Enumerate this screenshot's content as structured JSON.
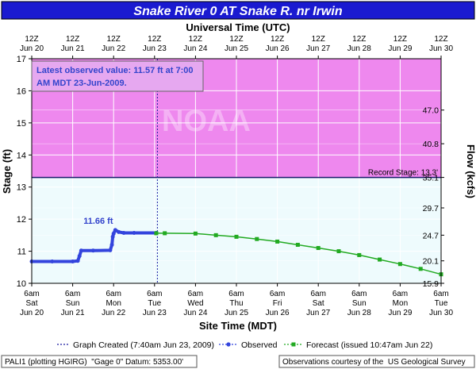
{
  "chart_data": {
    "type": "line",
    "title": "Snake River 0 AT Snake R. nr Irwin",
    "top_axis_title": "Universal Time (UTC)",
    "xlabel": "Site Time (MDT)",
    "ylabel_left": "Stage (ft)",
    "ylabel_right": "Flow (kcfs)",
    "x_range": [
      "2009-06-20 06:00",
      "2009-06-30 06:00"
    ],
    "ylim": [
      10,
      17
    ],
    "left_ticks": [
      10,
      11,
      12,
      13,
      14,
      15,
      16,
      17
    ],
    "right_ticks": [
      {
        "stage": 10.0,
        "label": "15.9"
      },
      {
        "stage": 10.7,
        "label": "20.1"
      },
      {
        "stage": 11.5,
        "label": "24.7"
      },
      {
        "stage": 12.35,
        "label": "29.7"
      },
      {
        "stage": 13.3,
        "label": "35.1"
      },
      {
        "stage": 14.35,
        "label": "40.8"
      },
      {
        "stage": 15.4,
        "label": "47.0"
      }
    ],
    "top_ticks": [
      {
        "hour": "12Z",
        "date": "Jun 20"
      },
      {
        "hour": "12Z",
        "date": "Jun 21"
      },
      {
        "hour": "12Z",
        "date": "Jun 22"
      },
      {
        "hour": "12Z",
        "date": "Jun 23"
      },
      {
        "hour": "12Z",
        "date": "Jun 24"
      },
      {
        "hour": "12Z",
        "date": "Jun 25"
      },
      {
        "hour": "12Z",
        "date": "Jun 26"
      },
      {
        "hour": "12Z",
        "date": "Jun 27"
      },
      {
        "hour": "12Z",
        "date": "Jun 28"
      },
      {
        "hour": "12Z",
        "date": "Jun 29"
      },
      {
        "hour": "12Z",
        "date": "Jun 30"
      }
    ],
    "bottom_ticks": [
      {
        "time": "6am",
        "day": "Sat",
        "date": "Jun 20"
      },
      {
        "time": "6am",
        "day": "Sun",
        "date": "Jun 21"
      },
      {
        "time": "6am",
        "day": "Mon",
        "date": "Jun 22"
      },
      {
        "time": "6am",
        "day": "Tue",
        "date": "Jun 23"
      },
      {
        "time": "6am",
        "day": "Wed",
        "date": "Jun 24"
      },
      {
        "time": "6am",
        "day": "Thu",
        "date": "Jun 25"
      },
      {
        "time": "6am",
        "day": "Fri",
        "date": "Jun 26"
      },
      {
        "time": "6am",
        "day": "Sat",
        "date": "Jun 27"
      },
      {
        "time": "6am",
        "day": "Sun",
        "date": "Jun 28"
      },
      {
        "time": "6am",
        "day": "Mon",
        "date": "Jun 29"
      },
      {
        "time": "6am",
        "day": "Tue",
        "date": "Jun 30"
      }
    ],
    "record_stage": {
      "value": 13.3,
      "label": "Record Stage: 13.3'"
    },
    "graph_created": {
      "time": "2009-06-23 07:40",
      "label": "Graph Created (7:40am Jun 23, 2009)"
    },
    "latest_observed": {
      "line1": "Latest observed value: 11.57 ft at 7:00",
      "line2": "AM MDT 23-Jun-2009."
    },
    "peak_label": {
      "time": "2009-06-22 06:00",
      "value": 11.66,
      "text": "11.66 ft"
    },
    "series": [
      {
        "name": "Observed",
        "color": "#3344dd",
        "points": [
          [
            "2009-06-20 06:00",
            10.68
          ],
          [
            "2009-06-20 18:00",
            10.68
          ],
          [
            "2009-06-21 06:00",
            10.68
          ],
          [
            "2009-06-21 09:00",
            10.7
          ],
          [
            "2009-06-21 10:00",
            10.85
          ],
          [
            "2009-06-21 11:00",
            11.02
          ],
          [
            "2009-06-21 18:00",
            11.02
          ],
          [
            "2009-06-22 04:00",
            11.03
          ],
          [
            "2009-06-22 05:00",
            11.2
          ],
          [
            "2009-06-22 05:30",
            11.45
          ],
          [
            "2009-06-22 06:00",
            11.55
          ],
          [
            "2009-06-22 07:00",
            11.66
          ],
          [
            "2009-06-22 09:00",
            11.6
          ],
          [
            "2009-06-22 12:00",
            11.57
          ],
          [
            "2009-06-22 18:00",
            11.57
          ],
          [
            "2009-06-23 07:00",
            11.57
          ]
        ]
      },
      {
        "name": "Forecast (issued 10:47am Jun 22)",
        "color": "#22aa22",
        "points": [
          [
            "2009-06-23 07:00",
            11.56
          ],
          [
            "2009-06-23 12:00",
            11.56
          ],
          [
            "2009-06-24 06:00",
            11.55
          ],
          [
            "2009-06-24 18:00",
            11.5
          ],
          [
            "2009-06-25 06:00",
            11.45
          ],
          [
            "2009-06-25 18:00",
            11.38
          ],
          [
            "2009-06-26 06:00",
            11.3
          ],
          [
            "2009-06-26 18:00",
            11.2
          ],
          [
            "2009-06-27 06:00",
            11.1
          ],
          [
            "2009-06-27 18:00",
            11.0
          ],
          [
            "2009-06-28 06:00",
            10.88
          ],
          [
            "2009-06-28 18:00",
            10.74
          ],
          [
            "2009-06-29 06:00",
            10.6
          ],
          [
            "2009-06-29 18:00",
            10.45
          ],
          [
            "2009-06-30 06:00",
            10.28
          ]
        ]
      }
    ],
    "legend": {
      "created_label": "Graph Created (7:40am Jun 23, 2009)",
      "observed_label": "Observed",
      "forecast_label": "Forecast (issued 10:47am Jun 22)"
    },
    "watermark": "NOAA",
    "footer": {
      "left": "PALI1 (plotting HGIRG)  \"Gage 0\" Datum: 5353.00'",
      "right": "Observations courtesy of the  US Geological Survey"
    },
    "colors": {
      "title_bar": "#1a1ad0",
      "grid_bg": "#eefbfd",
      "above_record": "#ee88ee",
      "record_line": "#1a1a6a",
      "label_box": "#e6a8f0",
      "label_text": "#3344cc",
      "observed": "#3344dd",
      "forecast": "#22aa22",
      "now_line": "#1a1aa0"
    }
  }
}
